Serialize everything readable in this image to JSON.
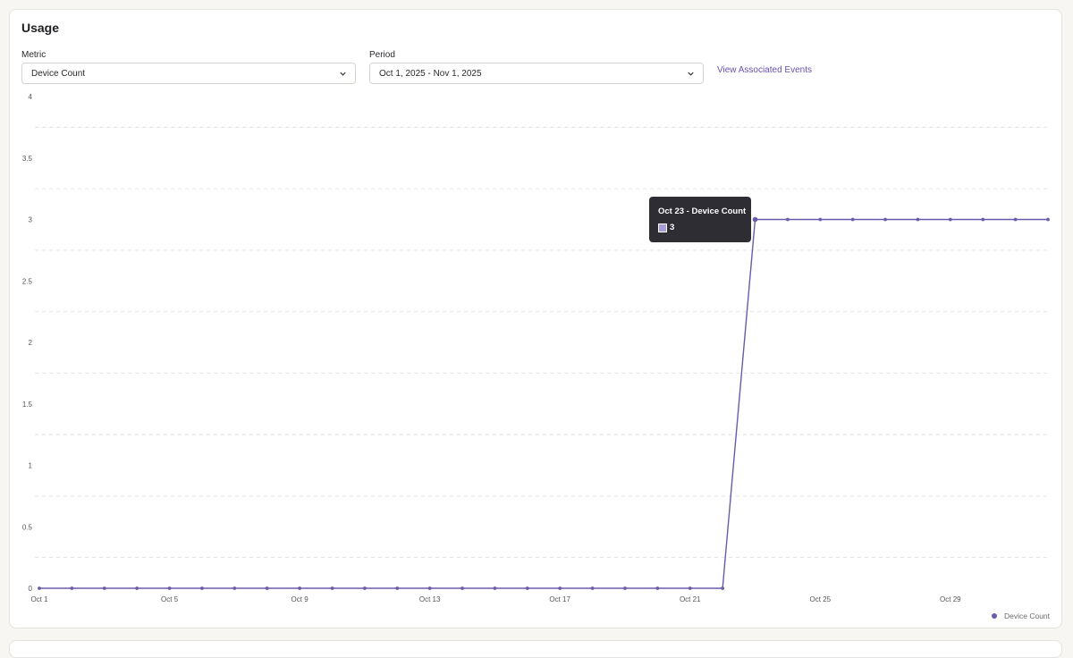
{
  "card": {
    "title": "Usage"
  },
  "filters": {
    "metric_label": "Metric",
    "metric_value": "Device Count",
    "period_label": "Period",
    "period_value": "Oct 1, 2025 - Nov 1, 2025",
    "link_label": "View Associated Events"
  },
  "tooltip": {
    "title": "Oct 23 - Device Count",
    "value": "3"
  },
  "colors": {
    "series": "#6b5aa8",
    "accent_link": "#6b4fb3",
    "tooltip_bg": "#2d2d33",
    "grid": "#e3e3e3"
  },
  "chart_data": {
    "type": "line",
    "title": "",
    "xlabel": "",
    "ylabel": "",
    "x": [
      "Oct 1",
      "Oct 2",
      "Oct 3",
      "Oct 4",
      "Oct 5",
      "Oct 6",
      "Oct 7",
      "Oct 8",
      "Oct 9",
      "Oct 10",
      "Oct 11",
      "Oct 12",
      "Oct 13",
      "Oct 14",
      "Oct 15",
      "Oct 16",
      "Oct 17",
      "Oct 18",
      "Oct 19",
      "Oct 20",
      "Oct 21",
      "Oct 22",
      "Oct 23",
      "Oct 24",
      "Oct 25",
      "Oct 26",
      "Oct 27",
      "Oct 28",
      "Oct 29",
      "Oct 30",
      "Oct 31",
      "Nov 1"
    ],
    "x_tick_labels": [
      "Oct 1",
      "Oct 5",
      "Oct 9",
      "Oct 13",
      "Oct 17",
      "Oct 21",
      "Oct 25",
      "Oct 29"
    ],
    "y_tick_labels": [
      "0",
      "0.5",
      "1",
      "1.5",
      "2",
      "2.5",
      "3",
      "3.5",
      "4"
    ],
    "ylim": [
      0,
      4
    ],
    "grid": true,
    "legend_position": "bottom-right",
    "series": [
      {
        "name": "Device Count",
        "values": [
          0,
          0,
          0,
          0,
          0,
          0,
          0,
          0,
          0,
          0,
          0,
          0,
          0,
          0,
          0,
          0,
          0,
          0,
          0,
          0,
          0,
          0,
          3,
          3,
          3,
          3,
          3,
          3,
          3,
          3,
          3,
          3
        ]
      }
    ]
  }
}
